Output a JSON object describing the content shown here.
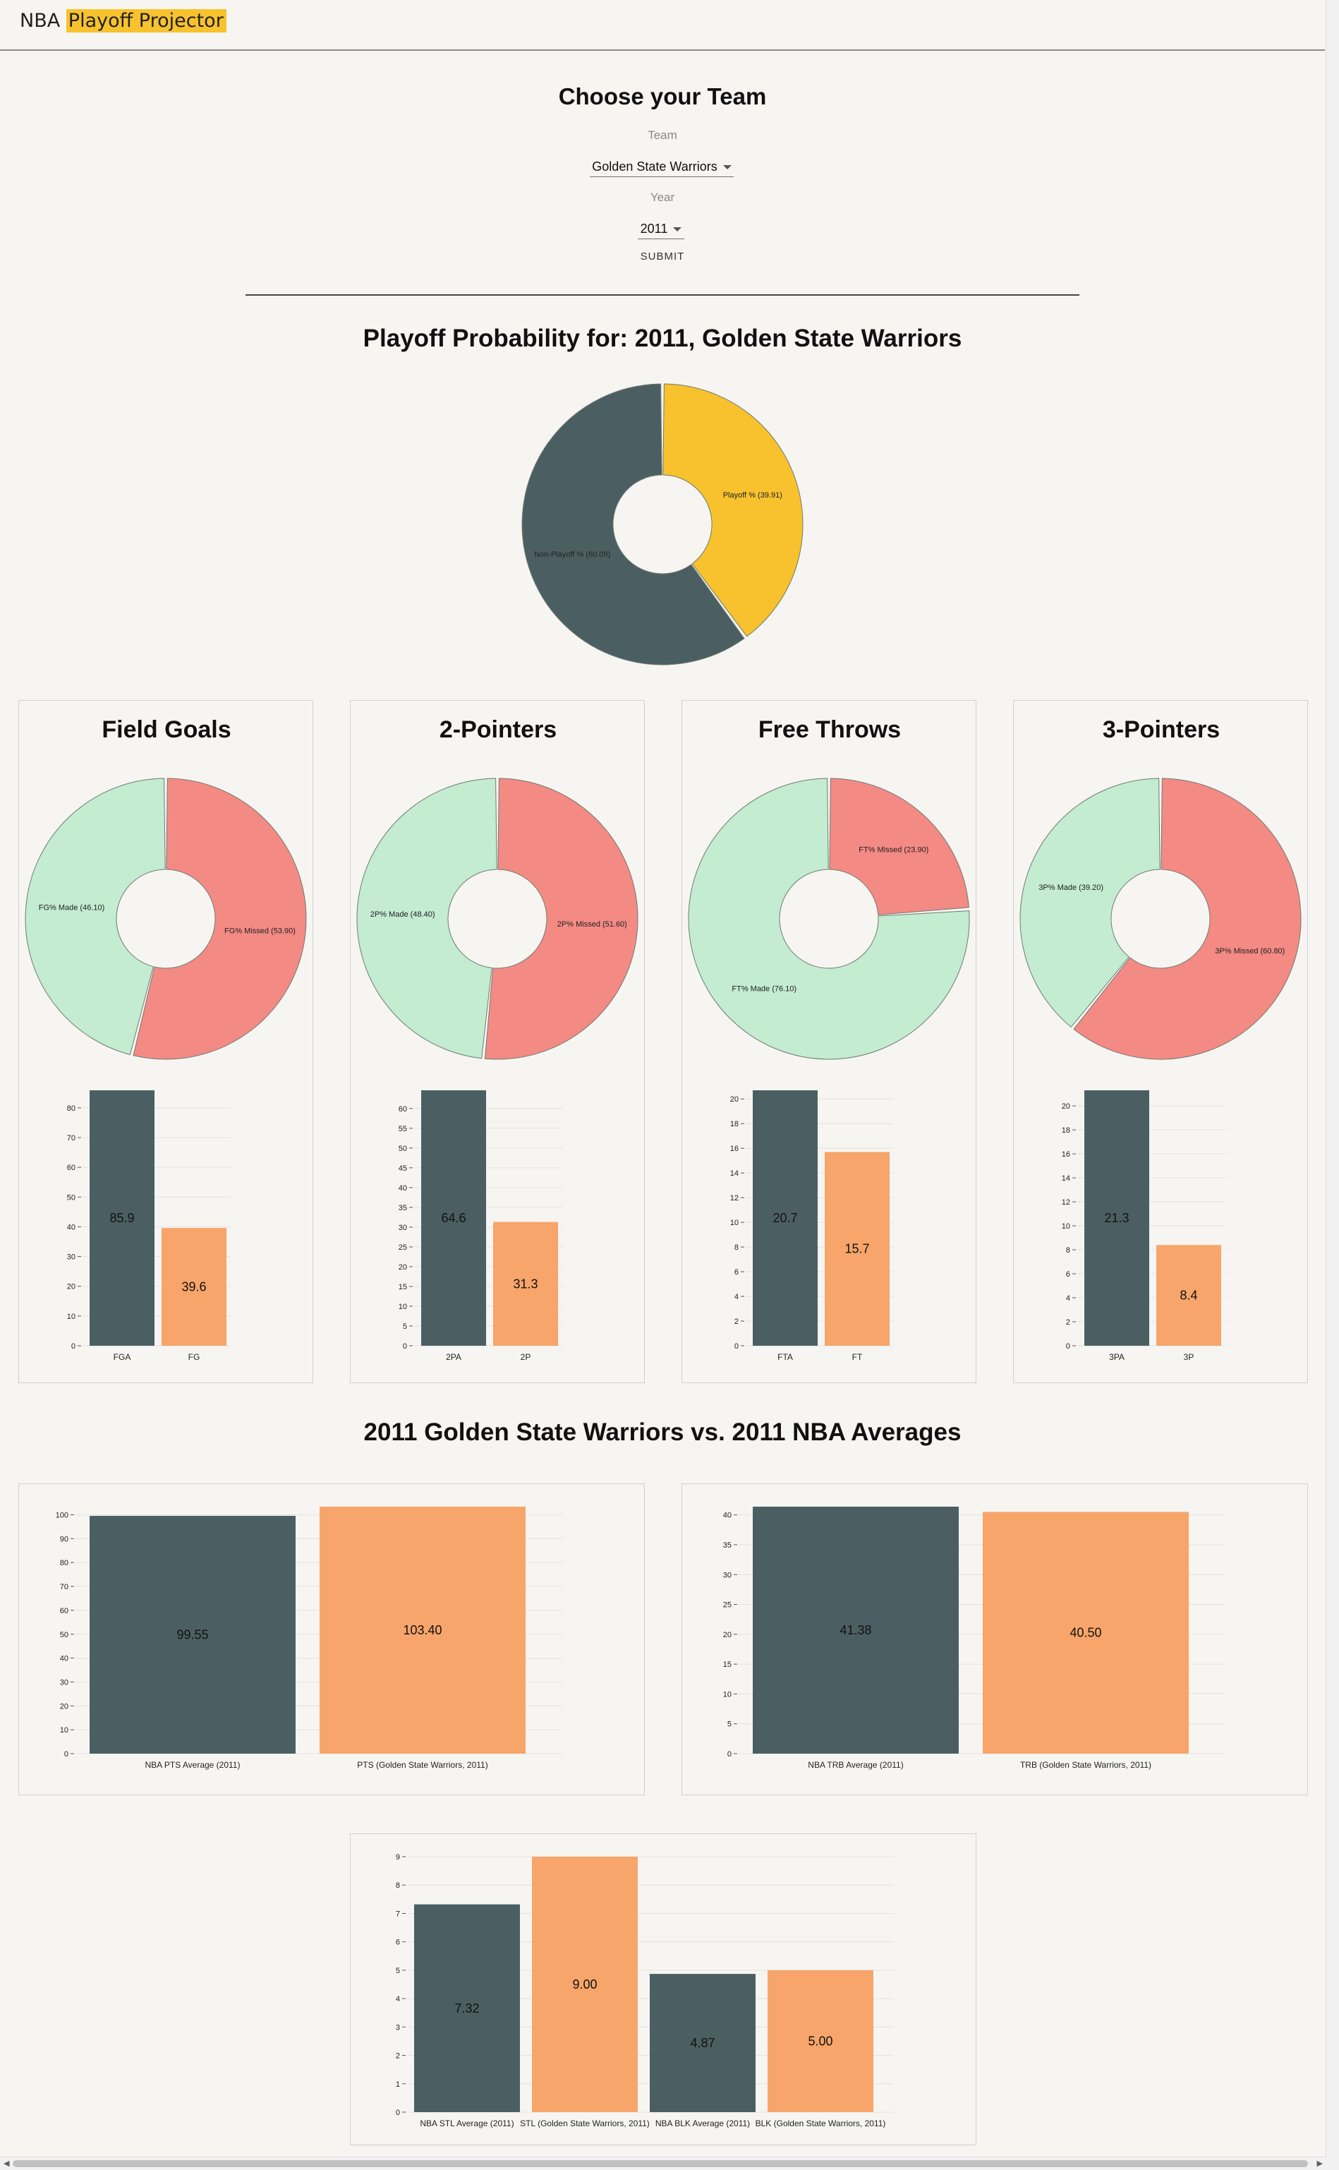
{
  "nav": {
    "brand_part1": "NBA",
    "brand_part2": "Playoff Projector"
  },
  "form": {
    "title": "Choose your Team",
    "team_label": "Team",
    "team_value": "Golden State Warriors",
    "year_label": "Year",
    "year_value": "2011",
    "submit_label": "SUBMIT"
  },
  "probability": {
    "title": "Playoff Probability for: 2011, Golden State Warriors"
  },
  "comparison_title": "2011 Golden State Warriors vs. 2011 NBA Averages",
  "colors": {
    "dark": "#4b5f63",
    "yellow": "#f7c22d",
    "orange": "#f7a56a",
    "made": "#c3ecd0",
    "missed": "#f48a84",
    "background": "#f6f5f1"
  },
  "chart_data": [
    {
      "id": "playoff",
      "type": "pie",
      "donut": true,
      "slices": [
        {
          "label": "Playoff % (39.91)",
          "value": 39.91,
          "color": "#f7c22d"
        },
        {
          "label": "Non-Playoff % (60.09)",
          "value": 60.09,
          "color": "#4b5f63"
        }
      ]
    },
    {
      "id": "fg",
      "type": "pie",
      "donut": true,
      "title": "Field Goals",
      "slices": [
        {
          "label": "FG% Missed (53.90)",
          "value": 53.9,
          "color": "#f48a84"
        },
        {
          "label": "FG% Made (46.10)",
          "value": 46.1,
          "color": "#c3ecd0"
        }
      ]
    },
    {
      "id": "fg-bar",
      "type": "bar",
      "categories": [
        "FGA",
        "FG"
      ],
      "values": [
        85.9,
        39.6
      ],
      "value_labels": [
        "85.9",
        "39.6"
      ],
      "ylim": [
        0,
        85.9
      ],
      "yticks": [
        0,
        10,
        20,
        30,
        40,
        50,
        60,
        70,
        80
      ]
    },
    {
      "id": "p2",
      "type": "pie",
      "donut": true,
      "title": "2-Pointers",
      "slices": [
        {
          "label": "2P% Missed (51.60)",
          "value": 51.6,
          "color": "#f48a84"
        },
        {
          "label": "2P% Made (48.40)",
          "value": 48.4,
          "color": "#c3ecd0"
        }
      ]
    },
    {
      "id": "p2-bar",
      "type": "bar",
      "categories": [
        "2PA",
        "2P"
      ],
      "values": [
        64.6,
        31.3
      ],
      "value_labels": [
        "64.6",
        "31.3"
      ],
      "ylim": [
        0,
        64.6
      ],
      "yticks": [
        0,
        5,
        10,
        15,
        20,
        25,
        30,
        35,
        40,
        45,
        50,
        55,
        60
      ]
    },
    {
      "id": "ft",
      "type": "pie",
      "donut": true,
      "title": "Free Throws",
      "slices": [
        {
          "label": "FT% Missed (23.90)",
          "value": 23.9,
          "color": "#f48a84"
        },
        {
          "label": "FT% Made (76.10)",
          "value": 76.1,
          "color": "#c3ecd0"
        }
      ]
    },
    {
      "id": "ft-bar",
      "type": "bar",
      "categories": [
        "FTA",
        "FT"
      ],
      "values": [
        20.7,
        15.7
      ],
      "value_labels": [
        "20.7",
        "15.7"
      ],
      "ylim": [
        0,
        20.7
      ],
      "yticks": [
        0,
        2,
        4,
        6,
        8,
        10,
        12,
        14,
        16,
        18,
        20
      ]
    },
    {
      "id": "p3",
      "type": "pie",
      "donut": true,
      "title": "3-Pointers",
      "slices": [
        {
          "label": "3P% Missed (60.80)",
          "value": 60.8,
          "color": "#f48a84"
        },
        {
          "label": "3P% Made (39.20)",
          "value": 39.2,
          "color": "#c3ecd0"
        }
      ]
    },
    {
      "id": "p3-bar",
      "type": "bar",
      "categories": [
        "3PA",
        "3P"
      ],
      "values": [
        21.3,
        8.4
      ],
      "value_labels": [
        "21.3",
        "8.4"
      ],
      "ylim": [
        0,
        21.3
      ],
      "yticks": [
        0,
        2,
        4,
        6,
        8,
        10,
        12,
        14,
        16,
        18,
        20
      ]
    },
    {
      "id": "pts-bar",
      "type": "bar",
      "categories": [
        "NBA PTS Average (2011)",
        "PTS (Golden State Warriors, 2011)"
      ],
      "values": [
        99.55,
        103.4
      ],
      "value_labels": [
        "99.55",
        "103.40"
      ],
      "ylim": [
        0,
        103.4
      ],
      "yticks": [
        0,
        10,
        20,
        30,
        40,
        50,
        60,
        70,
        80,
        90,
        100
      ]
    },
    {
      "id": "trb-bar",
      "type": "bar",
      "categories": [
        "NBA TRB Average (2011)",
        "TRB (Golden State Warriors, 2011)"
      ],
      "values": [
        41.38,
        40.5
      ],
      "value_labels": [
        "41.38",
        "40.50"
      ],
      "ylim": [
        0,
        41.38
      ],
      "yticks": [
        0,
        5,
        10,
        15,
        20,
        25,
        30,
        35,
        40
      ]
    },
    {
      "id": "stlblk-bar",
      "type": "bar",
      "categories": [
        "NBA STL Average (2011)",
        "STL (Golden State Warriors, 2011)",
        "NBA BLK Average (2011)",
        "BLK (Golden State Warriors, 2011)"
      ],
      "values": [
        7.32,
        9.0,
        4.87,
        5.0
      ],
      "value_labels": [
        "7.32",
        "9.00",
        "4.87",
        "5.00"
      ],
      "ylim": [
        0,
        9.0
      ],
      "yticks": [
        0,
        1,
        2,
        3,
        4,
        5,
        6,
        7,
        8,
        9
      ]
    }
  ]
}
